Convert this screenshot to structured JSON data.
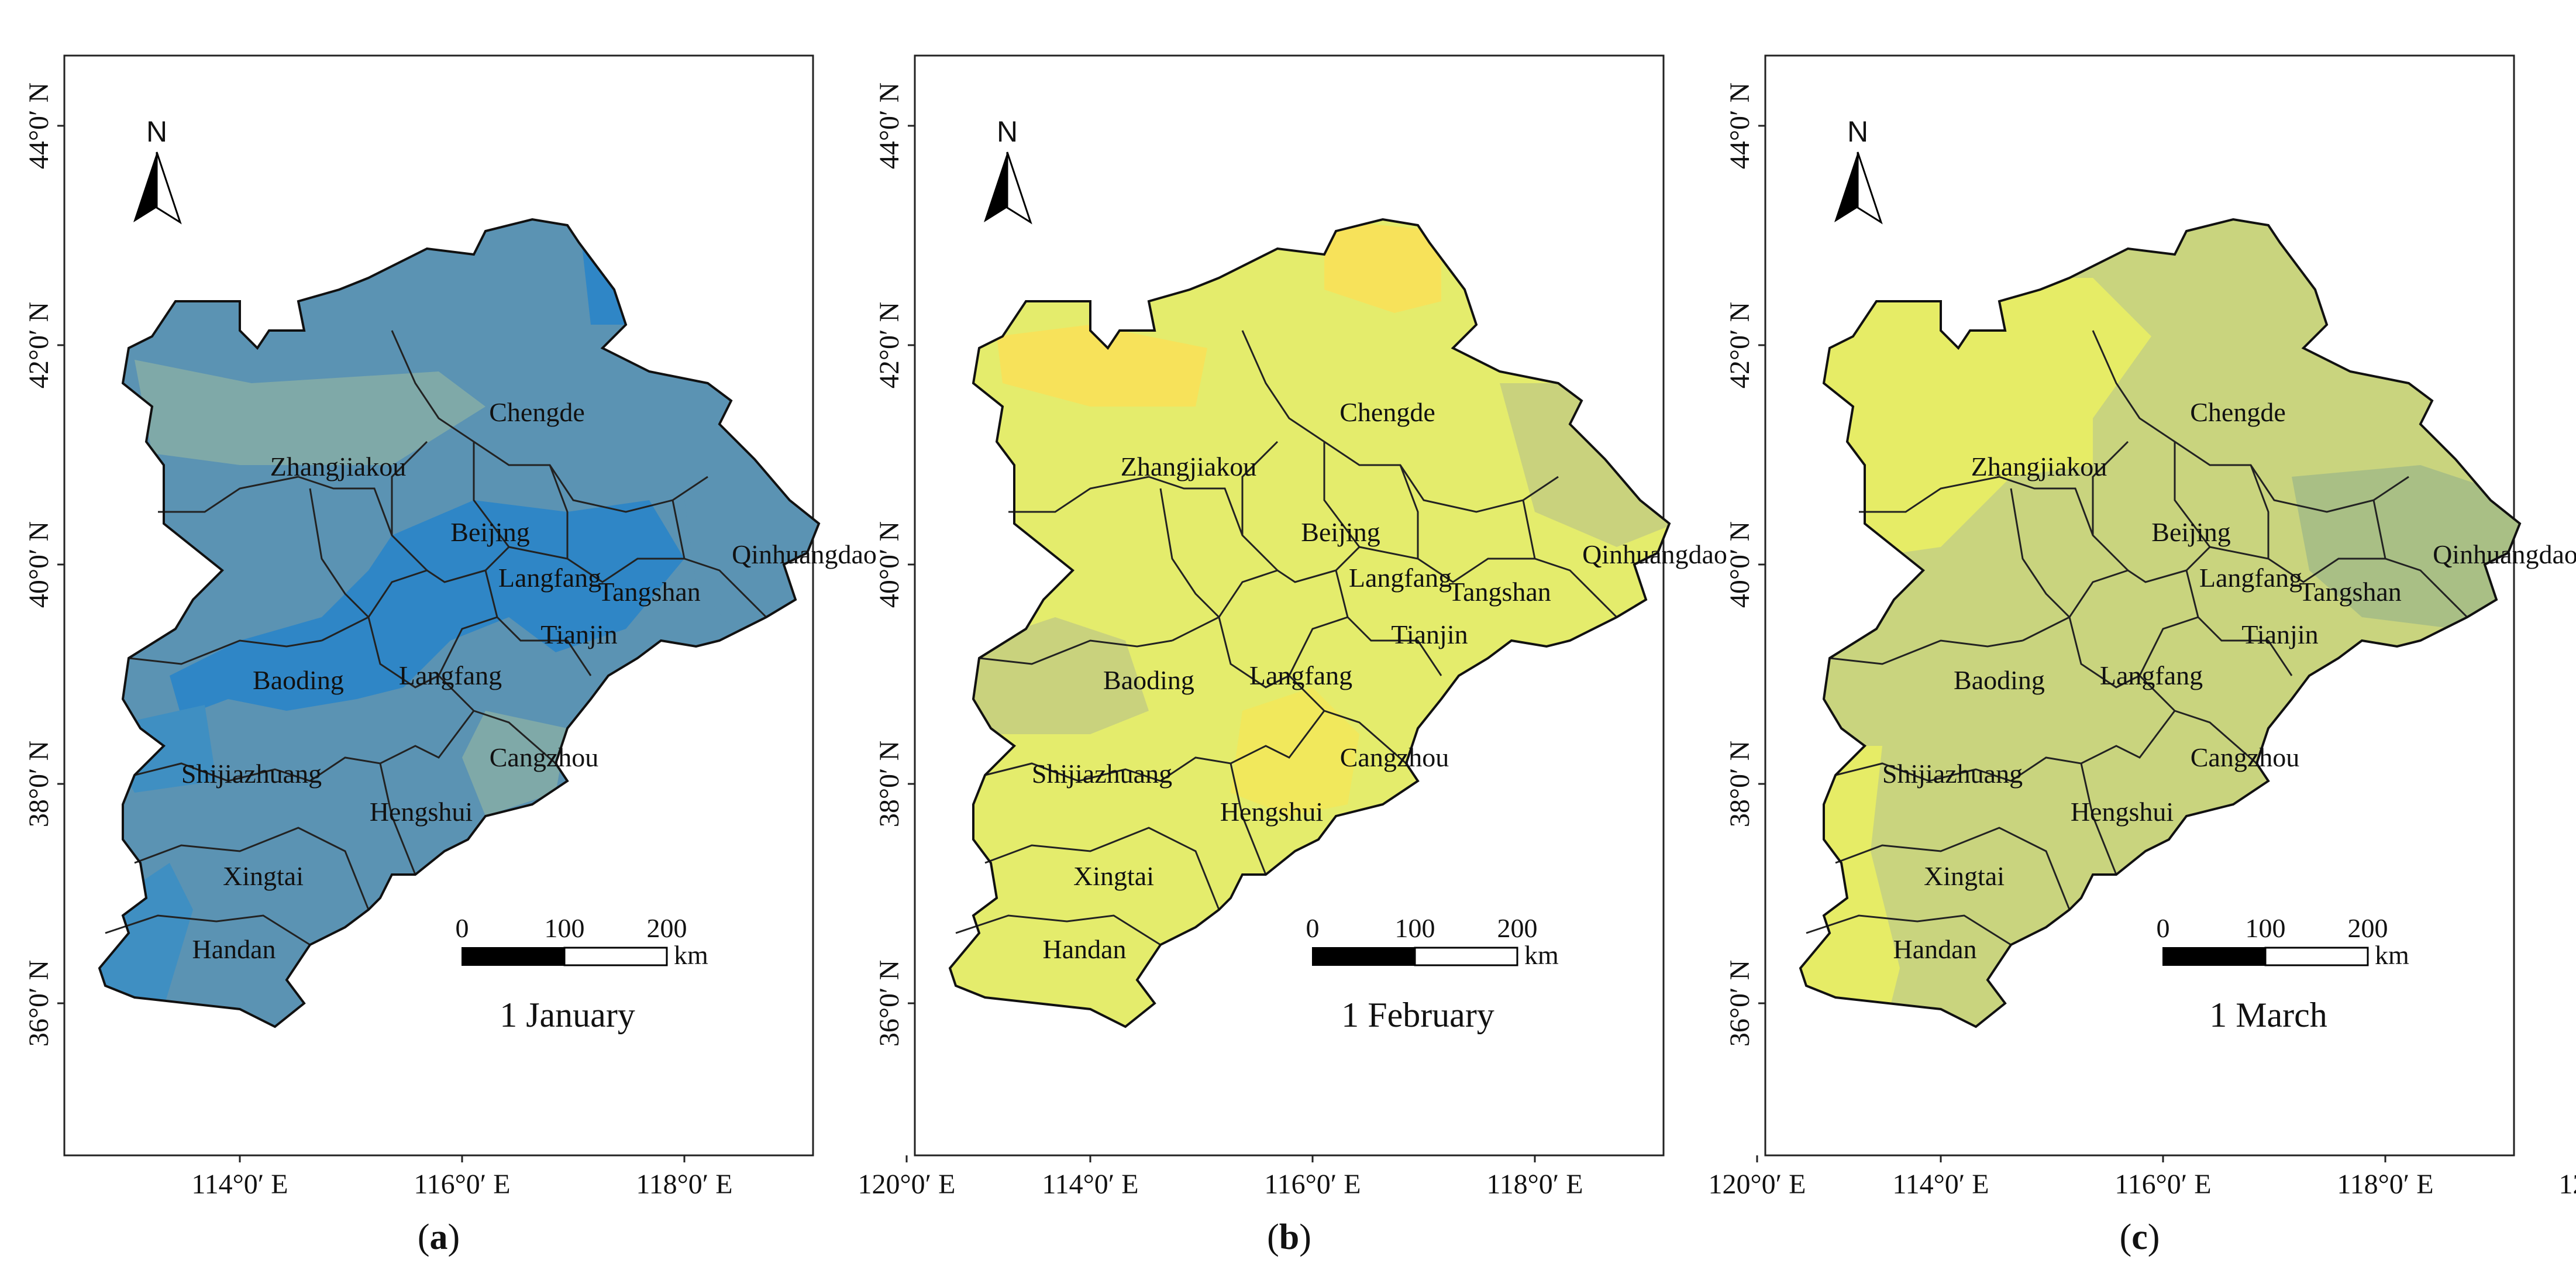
{
  "panels": [
    {
      "id": "a",
      "caption_letter": "a",
      "date_label": "1 January",
      "fill_main": "#5b93b3",
      "fill_light": "#7fa9a8",
      "fill_dark": "#2f86c6",
      "fill_edge": "#3f8fc2"
    },
    {
      "id": "b",
      "caption_letter": "b",
      "date_label": "1 February",
      "fill_main": "#e4ec6c",
      "fill_light": "#c9d27d",
      "fill_dark": "#f7e25a",
      "fill_edge": "#f1e85c"
    },
    {
      "id": "c",
      "caption_letter": "c",
      "date_label": "1 March",
      "fill_main": "#c9d47e",
      "fill_light": "#e6ec66",
      "fill_dark": "#a9bf85",
      "fill_edge": "#dfe66a"
    }
  ],
  "axes": {
    "x_ticks": [
      "114°0′ E",
      "116°0′ E",
      "118°0′ E",
      "120°0′ E"
    ],
    "y_ticks": [
      "44°0′ N",
      "42°0′ N",
      "40°0′ N",
      "38°0′ N",
      "36°0′ N"
    ]
  },
  "north_arrow_label": "N",
  "scale_bar": {
    "labels": [
      "0",
      "100",
      "200"
    ],
    "unit": "km"
  },
  "cities": [
    {
      "name": "Chengde"
    },
    {
      "name": "Zhangjiakou"
    },
    {
      "name": "Beijing"
    },
    {
      "name": "Qinhuangdao"
    },
    {
      "name": "Langfang"
    },
    {
      "name": "Tangshan"
    },
    {
      "name": "Tianjin"
    },
    {
      "name": "Baoding"
    },
    {
      "name": "Langfang"
    },
    {
      "name": "Cangzhou"
    },
    {
      "name": "Shijiazhuang"
    },
    {
      "name": "Hengshui"
    },
    {
      "name": "Xingtai"
    },
    {
      "name": "Handan"
    }
  ]
}
